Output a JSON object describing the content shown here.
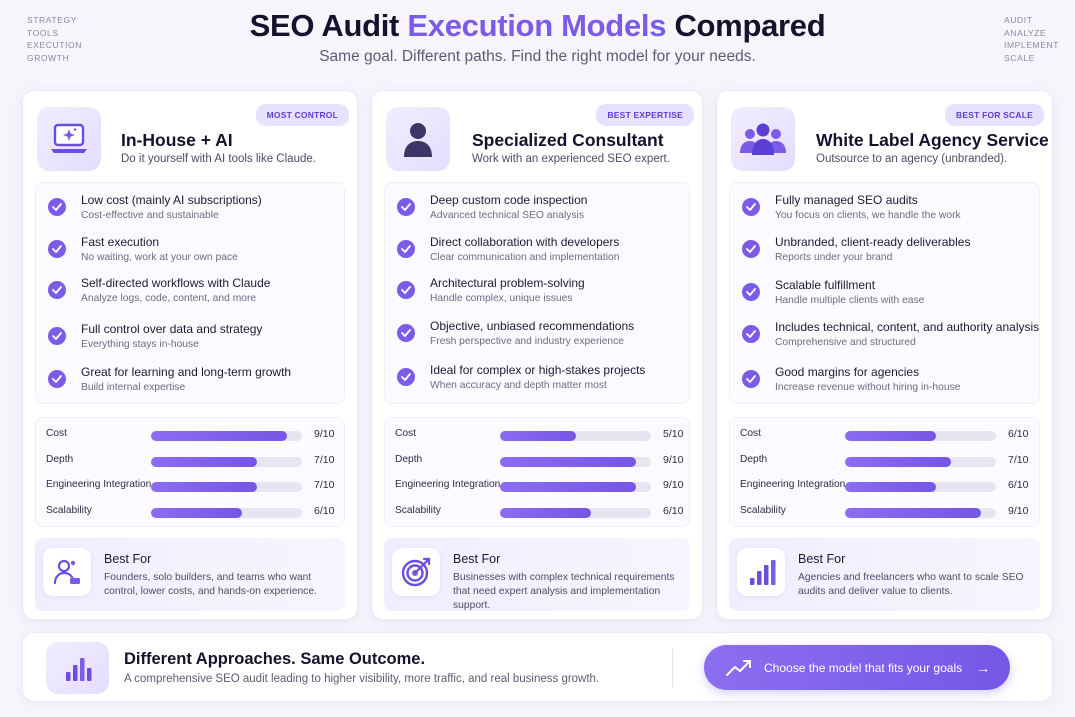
{
  "corner_left": [
    "STRATEGY",
    "TOOLS",
    "EXECUTION",
    "GROWTH"
  ],
  "corner_right": [
    "AUDIT",
    "ANALYZE",
    "IMPLEMENT",
    "SCALE"
  ],
  "header": {
    "title_part1": "SEO Audit ",
    "title_accent": "Execution Models",
    "title_part2": " Compared",
    "subtitle": "Same goal. Different paths. Find the right model for your needs."
  },
  "colors": {
    "accent": "#7b5ce8",
    "badge_bg": "#e7e1fd",
    "text": "#14122c"
  },
  "cards": [
    {
      "badge": "MOST CONTROL",
      "icon": "laptop-sparkle-icon",
      "title": "In-House + AI",
      "subtitle": "Do it yourself with AI tools like Claude.",
      "features": [
        {
          "title": "Low cost (mainly AI subscriptions)",
          "desc": "Cost-effective and sustainable"
        },
        {
          "title": "Fast execution",
          "desc": "No waiting, work at your own pace"
        },
        {
          "title": "Self-directed workflows with Claude",
          "desc": "Analyze logs, code, content, and more"
        },
        {
          "title": "Full control over data and strategy",
          "desc": "Everything stays in-house"
        },
        {
          "title": "Great for learning and long-term growth",
          "desc": "Build internal expertise"
        }
      ],
      "ratings": [
        {
          "label": "Cost",
          "value": 9,
          "display": "9/10"
        },
        {
          "label": "Depth",
          "value": 7,
          "display": "7/10"
        },
        {
          "label": "Engineering Integration",
          "value": 7,
          "display": "7/10"
        },
        {
          "label": "Scalability",
          "value": 6,
          "display": "6/10"
        }
      ],
      "best_for_icon": "user-group-icon",
      "best_for_title": "Best For",
      "best_for_desc": "Founders, solo builders, and teams who want control, lower costs, and hands-on experience."
    },
    {
      "badge": "BEST EXPERTISE",
      "icon": "person-icon",
      "title": "Specialized Consultant",
      "subtitle": "Work with an experienced SEO expert.",
      "features": [
        {
          "title": "Deep custom code inspection",
          "desc": "Advanced technical SEO analysis"
        },
        {
          "title": "Direct collaboration with developers",
          "desc": "Clear communication and implementation"
        },
        {
          "title": "Architectural problem-solving",
          "desc": "Handle complex, unique issues"
        },
        {
          "title": "Objective, unbiased recommendations",
          "desc": "Fresh perspective and industry experience"
        },
        {
          "title": "Ideal for complex or high-stakes projects",
          "desc": "When accuracy and depth matter most"
        }
      ],
      "ratings": [
        {
          "label": "Cost",
          "value": 5,
          "display": "5/10"
        },
        {
          "label": "Depth",
          "value": 9,
          "display": "9/10"
        },
        {
          "label": "Engineering Integration",
          "value": 9,
          "display": "9/10"
        },
        {
          "label": "Scalability",
          "value": 6,
          "display": "6/10"
        }
      ],
      "best_for_icon": "target-icon",
      "best_for_title": "Best For",
      "best_for_desc": "Businesses with complex technical requirements that need expert analysis and implementation support."
    },
    {
      "badge": "BEST FOR SCALE",
      "icon": "team-icon",
      "title": "White Label Agency Service",
      "subtitle": "Outsource to an agency (unbranded).",
      "features": [
        {
          "title": "Fully managed SEO audits",
          "desc": "You focus on clients, we handle the work"
        },
        {
          "title": "Unbranded, client-ready deliverables",
          "desc": "Reports under your brand"
        },
        {
          "title": "Scalable fulfillment",
          "desc": "Handle multiple clients with ease"
        },
        {
          "title": "Includes technical, content, and authority analysis",
          "desc": "Comprehensive and structured"
        },
        {
          "title": "Good margins for agencies",
          "desc": "Increase revenue without hiring in-house"
        }
      ],
      "ratings": [
        {
          "label": "Cost",
          "value": 6,
          "display": "6/10"
        },
        {
          "label": "Depth",
          "value": 7,
          "display": "7/10"
        },
        {
          "label": "Engineering Integration",
          "value": 6,
          "display": "6/10"
        },
        {
          "label": "Scalability",
          "value": 9,
          "display": "9/10"
        }
      ],
      "best_for_icon": "bar-chart-icon",
      "best_for_title": "Best For",
      "best_for_desc": "Agencies and freelancers who want to scale SEO audits and deliver value to clients."
    }
  ],
  "footer": {
    "icon": "bar-chart-icon",
    "title": "Different Approaches. Same Outcome.",
    "subtitle": "A comprehensive SEO audit leading to higher visibility, more traffic, and real business growth.",
    "cta_icon": "trend-up-icon",
    "cta_label": "Choose the model that fits your goals",
    "cta_arrow": "→"
  }
}
